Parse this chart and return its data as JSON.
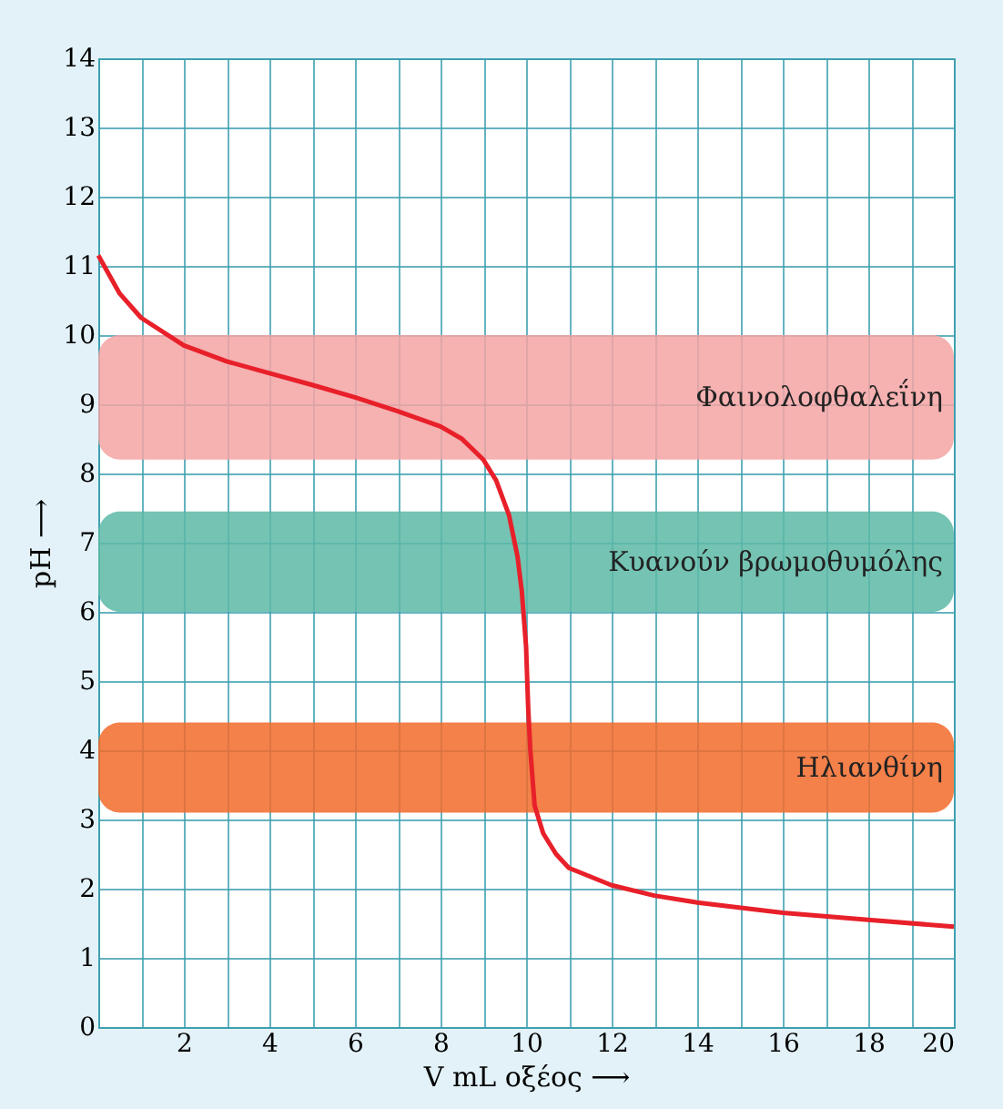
{
  "chart_data": {
    "type": "line",
    "xlabel": "V mL οξέος ⟶",
    "ylabel": "pH ⟶",
    "series": [
      {
        "color": "#e8202a",
        "x": [
          0,
          0.5,
          1,
          2,
          3,
          4,
          5,
          6,
          7,
          8,
          8.5,
          9,
          9.3,
          9.6,
          9.8,
          9.9,
          10,
          10.05,
          10.1,
          10.2,
          10.4,
          10.7,
          11,
          12,
          13,
          14,
          16,
          18,
          20
        ],
        "values": [
          11.15,
          10.6,
          10.25,
          9.85,
          9.62,
          9.45,
          9.28,
          9.1,
          8.9,
          8.68,
          8.5,
          8.2,
          7.9,
          7.4,
          6.8,
          6.3,
          5.5,
          4.6,
          4.0,
          3.2,
          2.8,
          2.5,
          2.3,
          2.05,
          1.9,
          1.8,
          1.65,
          1.55,
          1.45
        ]
      }
    ],
    "bands": [
      {
        "axis": "y",
        "from": 8.2,
        "to": 10,
        "label": "Φαινολοφθαλεΐνη",
        "color": "#f4a3a3"
      },
      {
        "axis": "y",
        "from": 6,
        "to": 7.45,
        "label": "Κυανούν βρωμοθυμόλης",
        "color": "#5cb8a6"
      },
      {
        "axis": "y",
        "from": 3.1,
        "to": 4.4,
        "label": "Ηλιανθίνη",
        "color": "#f26a2a"
      }
    ],
    "xlim": [
      0,
      20
    ],
    "ylim": [
      0,
      14
    ],
    "xticks": [
      {
        "value": 0,
        "label": null
      },
      {
        "value": 1,
        "label": null
      },
      2,
      {
        "value": 3,
        "label": null
      },
      4,
      {
        "value": 5,
        "label": null
      },
      6,
      {
        "value": 7,
        "label": null
      },
      8,
      {
        "value": 9,
        "label": null
      },
      10,
      {
        "value": 11,
        "label": null
      },
      12,
      {
        "value": 13,
        "label": null
      },
      14,
      {
        "value": 15,
        "label": null
      },
      16,
      {
        "value": 17,
        "label": null
      },
      18,
      {
        "value": 19,
        "label": null
      },
      20
    ],
    "yticks": [
      0,
      1,
      2,
      3,
      4,
      5,
      6,
      7,
      8,
      9,
      10,
      11,
      12,
      13,
      14
    ],
    "grid": true,
    "line_style": "solid",
    "marker": "none"
  }
}
